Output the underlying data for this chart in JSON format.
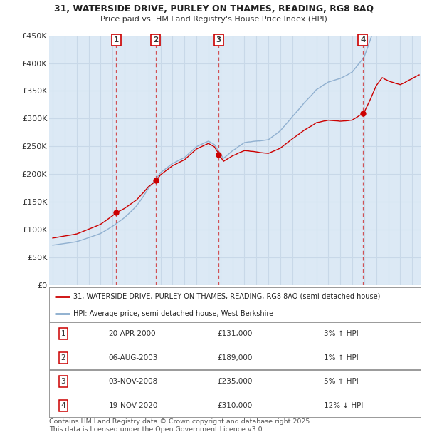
{
  "title_line1": "31, WATERSIDE DRIVE, PURLEY ON THAMES, READING, RG8 8AQ",
  "title_line2": "Price paid vs. HM Land Registry's House Price Index (HPI)",
  "ylim": [
    0,
    450000
  ],
  "yticks": [
    0,
    50000,
    100000,
    150000,
    200000,
    250000,
    300000,
    350000,
    400000,
    450000
  ],
  "ytick_labels": [
    "£0",
    "£50K",
    "£100K",
    "£150K",
    "£200K",
    "£250K",
    "£300K",
    "£350K",
    "£400K",
    "£450K"
  ],
  "xlim_min": 1994.7,
  "xlim_max": 2025.7,
  "plot_bg_color": "#dce9f5",
  "grid_color": "#c8d8e8",
  "red_color": "#cc0000",
  "blue_color": "#88aacc",
  "transactions": [
    {
      "num": 1,
      "date": "20-APR-2000",
      "price": 131000,
      "pct": "3%",
      "dir": "↑",
      "x_year": 2000.29
    },
    {
      "num": 2,
      "date": "06-AUG-2003",
      "price": 189000,
      "pct": "1%",
      "dir": "↑",
      "x_year": 2003.59
    },
    {
      "num": 3,
      "date": "03-NOV-2008",
      "price": 235000,
      "pct": "5%",
      "dir": "↑",
      "x_year": 2008.84
    },
    {
      "num": 4,
      "date": "19-NOV-2020",
      "price": 310000,
      "pct": "12%",
      "dir": "↓",
      "x_year": 2020.88
    }
  ],
  "legend_label_red": "31, WATERSIDE DRIVE, PURLEY ON THAMES, READING, RG8 8AQ (semi-detached house)",
  "legend_label_blue": "HPI: Average price, semi-detached house, West Berkshire",
  "footer": "Contains HM Land Registry data © Crown copyright and database right 2025.\nThis data is licensed under the Open Government Licence v3.0."
}
